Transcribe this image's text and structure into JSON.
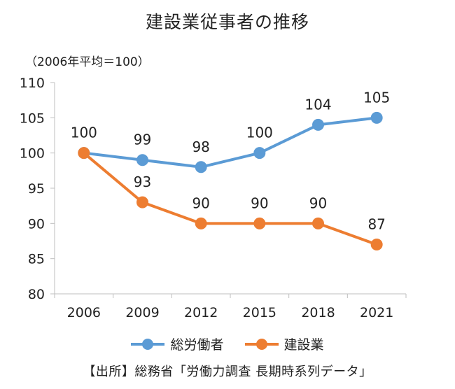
{
  "chart_data": {
    "type": "line",
    "title": "建設業従事者の推移",
    "unit_label": "（2006年平均＝100）",
    "categories": [
      "2006",
      "2009",
      "2012",
      "2015",
      "2018",
      "2021"
    ],
    "ylim": [
      80,
      110
    ],
    "yticks": [
      "80",
      "85",
      "90",
      "95",
      "100",
      "105",
      "110"
    ],
    "series": [
      {
        "name": "総労働者",
        "color": "#5b9bd5",
        "values": [
          100,
          99,
          98,
          100,
          104,
          105
        ]
      },
      {
        "name": "建設業",
        "color": "#ed7d31",
        "values": [
          100,
          93,
          90,
          90,
          90,
          87
        ]
      }
    ],
    "legend_position": "bottom",
    "source": "【出所】総務省「労働力調査 長期時系列データ」"
  }
}
